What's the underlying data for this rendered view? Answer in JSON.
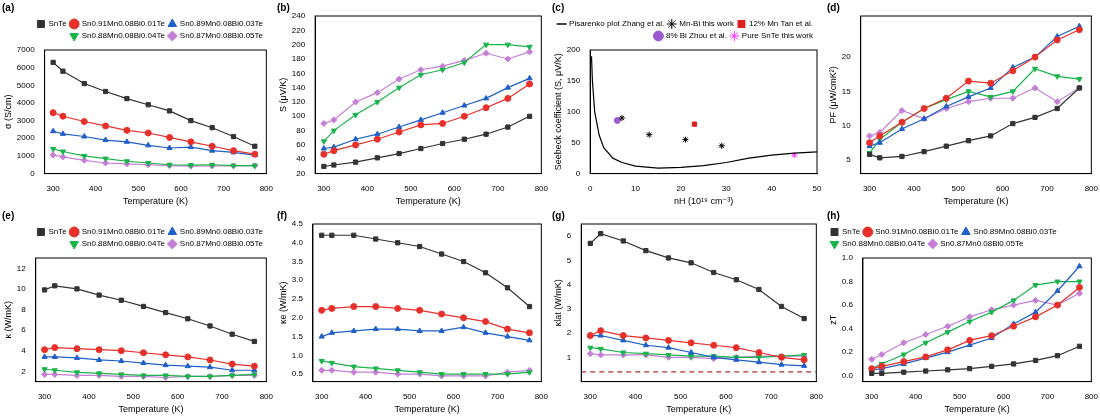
{
  "chart_data": [
    {
      "type": "line",
      "title": "(a)",
      "x_label": "Temperature (K)",
      "y_label": "σ (S/cm)",
      "x": [
        300,
        323,
        373,
        423,
        473,
        523,
        573,
        623,
        673,
        723,
        773
      ],
      "xlim": [
        280,
        800
      ],
      "xticks": [
        300,
        400,
        500,
        600,
        700,
        800
      ],
      "ylim": [
        0,
        7000
      ],
      "yticks": [
        0,
        1000,
        2000,
        3000,
        4000,
        5000,
        6000,
        7000
      ],
      "grid": false,
      "legend": "upper right",
      "series": [
        {
          "name": "SnTe",
          "color": "#333333",
          "marker": "square",
          "values": [
            6300,
            5800,
            5100,
            4650,
            4250,
            3900,
            3550,
            3000,
            2600,
            2100,
            1550
          ]
        },
        {
          "name": "Sn0.91Mn0.08Bi0.01Te",
          "color": "#e8302a",
          "marker": "circle",
          "values": [
            3450,
            3250,
            2950,
            2700,
            2450,
            2300,
            2050,
            1800,
            1550,
            1300,
            1100
          ]
        },
        {
          "name": "Sn0.89Mn0.08Bi0.03Te",
          "color": "#1f5fc8",
          "marker": "triangle",
          "values": [
            2400,
            2250,
            2100,
            1900,
            1800,
            1600,
            1450,
            1500,
            1300,
            1200,
            1050
          ]
        },
        {
          "name": "Sn0.88Mn0.08Bi0.04Te",
          "color": "#19b34b",
          "marker": "triangle-down",
          "values": [
            1400,
            1250,
            1000,
            850,
            700,
            600,
            500,
            480,
            500,
            450,
            450
          ]
        },
        {
          "name": "Sn0.87Mn0.08Bi0.05Te",
          "color": "#c57fd6",
          "marker": "diamond",
          "values": [
            1050,
            950,
            750,
            600,
            550,
            500,
            450,
            420,
            430,
            440,
            450
          ]
        }
      ]
    },
    {
      "type": "line",
      "title": "(b)",
      "x_label": "Temperature (K)",
      "y_label": "S (μV/K)",
      "x": [
        300,
        323,
        373,
        423,
        473,
        523,
        573,
        623,
        673,
        723,
        773
      ],
      "xlim": [
        280,
        800
      ],
      "xticks": [
        300,
        400,
        500,
        600,
        700,
        800
      ],
      "ylim": [
        20,
        240
      ],
      "yticks": [
        20,
        40,
        60,
        80,
        100,
        120,
        140,
        160,
        180,
        200,
        220,
        240
      ],
      "grid": false,
      "series": [
        {
          "color": "#333333",
          "marker": "square",
          "values": [
            30,
            32,
            36,
            42,
            48,
            55,
            62,
            68,
            75,
            85,
            100
          ]
        },
        {
          "color": "#e8302a",
          "marker": "circle",
          "values": [
            47,
            52,
            60,
            68,
            78,
            88,
            90,
            100,
            112,
            125,
            145
          ]
        },
        {
          "color": "#1f5fc8",
          "marker": "triangle",
          "values": [
            55,
            57,
            68,
            75,
            85,
            95,
            105,
            115,
            125,
            140,
            153
          ]
        },
        {
          "color": "#19b34b",
          "marker": "triangle-down",
          "values": [
            65,
            80,
            102,
            120,
            140,
            158,
            165,
            175,
            200,
            200,
            197
          ]
        },
        {
          "color": "#c57fd6",
          "marker": "diamond",
          "values": [
            90,
            95,
            120,
            133,
            152,
            165,
            170,
            178,
            188,
            180,
            190
          ]
        }
      ]
    },
    {
      "type": "scatter",
      "title": "(c)",
      "x_label": "nH (10¹⁹ cm⁻³)",
      "y_label": "Seebeck coefficient (S, μV/K)",
      "xlim": [
        0,
        50
      ],
      "xticks": [
        0,
        10,
        20,
        30,
        40,
        50
      ],
      "ylim": [
        0,
        200
      ],
      "yticks": [
        0,
        50,
        100,
        150,
        200
      ],
      "grid": false,
      "legend": "upper right",
      "series": [
        {
          "name": "Pisarenko plot Zhang et al.",
          "type": "line",
          "color": "#000000",
          "x": [
            0.3,
            0.5,
            1,
            2,
            3,
            5,
            7,
            10,
            15,
            20,
            25,
            30,
            35,
            40,
            45,
            50
          ],
          "values": [
            190,
            150,
            100,
            62,
            42,
            25,
            18,
            12,
            9,
            10,
            13,
            18,
            25,
            30,
            33,
            35
          ]
        },
        {
          "name": "Mn-Bi this work",
          "color": "#000000",
          "marker": "star",
          "x": [
            7,
            13,
            21,
            29
          ],
          "values": [
            90,
            63,
            55,
            45
          ]
        },
        {
          "name": "12% Mn Tan et al.",
          "color": "#e02020",
          "marker": "square",
          "x": [
            23
          ],
          "values": [
            80
          ]
        },
        {
          "name": "8% Bi Zhou et al.",
          "color": "#9b59d0",
          "marker": "circle",
          "x": [
            6
          ],
          "values": [
            86
          ]
        },
        {
          "name": "Pure SnTe this work",
          "color": "#ff33ff",
          "marker": "star",
          "x": [
            45
          ],
          "values": [
            30
          ]
        }
      ]
    },
    {
      "type": "line",
      "title": "(d)",
      "x_label": "Temperature (K)",
      "y_label": "PF (μW/cmK²)",
      "x": [
        300,
        323,
        373,
        423,
        473,
        523,
        573,
        623,
        673,
        723,
        773
      ],
      "xlim": [
        280,
        800
      ],
      "xticks": [
        300,
        400,
        500,
        600,
        700,
        800
      ],
      "ylim": [
        3,
        26
      ],
      "yticks": [
        5,
        10,
        15,
        20
      ],
      "grid": false,
      "series": [
        {
          "color": "#333333",
          "marker": "square",
          "values": [
            5.8,
            5.3,
            5.5,
            6.2,
            7.0,
            7.8,
            8.5,
            10.3,
            11.2,
            12.5,
            15.5
          ]
        },
        {
          "color": "#e8302a",
          "marker": "circle",
          "values": [
            7.5,
            8.5,
            10.5,
            12.5,
            14.0,
            16.5,
            16.2,
            18.0,
            20.0,
            22.5,
            24.0
          ]
        },
        {
          "color": "#1f5fc8",
          "marker": "triangle",
          "values": [
            7.0,
            7.5,
            9.5,
            11.0,
            12.8,
            14.2,
            15.5,
            18.5,
            20.0,
            23.0,
            24.5
          ]
        },
        {
          "color": "#19b34b",
          "marker": "triangle-down",
          "values": [
            6.0,
            8.0,
            10.5,
            12.5,
            13.8,
            15.0,
            14.2,
            15.0,
            18.3,
            17.2,
            16.8
          ]
        },
        {
          "color": "#c57fd6",
          "marker": "diamond",
          "values": [
            8.5,
            9.0,
            12.2,
            11.0,
            12.5,
            13.5,
            14.0,
            14.0,
            15.5,
            13.5,
            15.5
          ]
        }
      ]
    },
    {
      "type": "line",
      "title": "(e)",
      "x_label": "Temperature (K)",
      "y_label": "κ (W/mK)",
      "x": [
        300,
        323,
        373,
        423,
        473,
        523,
        573,
        623,
        673,
        723,
        773
      ],
      "xlim": [
        280,
        800
      ],
      "xticks": [
        300,
        400,
        500,
        600,
        700,
        800
      ],
      "ylim": [
        1,
        13
      ],
      "yticks": [
        2,
        4,
        6,
        8,
        10,
        12
      ],
      "grid": false,
      "legend": "upper right",
      "series": [
        {
          "name": "SnTe",
          "color": "#333333",
          "marker": "square",
          "values": [
            9.9,
            10.3,
            10.0,
            9.4,
            8.9,
            8.3,
            7.7,
            7.1,
            6.4,
            5.6,
            4.9
          ]
        },
        {
          "name": "Sn0.91Mn0.08Bi0.01Te",
          "color": "#e8302a",
          "marker": "circle",
          "values": [
            4.1,
            4.3,
            4.2,
            4.1,
            4.0,
            3.8,
            3.6,
            3.4,
            3.1,
            2.7,
            2.5
          ]
        },
        {
          "name": "Sn0.89Mn0.08Bi0.03Te",
          "color": "#1f5fc8",
          "marker": "triangle",
          "values": [
            3.4,
            3.4,
            3.3,
            3.1,
            3.0,
            2.8,
            2.6,
            2.5,
            2.4,
            2.1,
            2.1
          ]
        },
        {
          "name": "Sn0.88Mn0.08Bi0.04Te",
          "color": "#19b34b",
          "marker": "triangle-down",
          "values": [
            2.2,
            2.1,
            1.9,
            1.8,
            1.7,
            1.6,
            1.6,
            1.5,
            1.5,
            1.6,
            1.7
          ]
        },
        {
          "name": "Sn0.87Mn0.08Bi0.05Te",
          "color": "#c57fd6",
          "marker": "diamond",
          "values": [
            1.7,
            1.7,
            1.6,
            1.6,
            1.5,
            1.5,
            1.4,
            1.5,
            1.5,
            1.6,
            1.6
          ]
        }
      ]
    },
    {
      "type": "line",
      "title": "(f)",
      "x_label": "Temperature (K)",
      "y_label": "κe (W/mK)",
      "x": [
        300,
        323,
        373,
        423,
        473,
        523,
        573,
        623,
        673,
        723,
        773
      ],
      "xlim": [
        280,
        800
      ],
      "xticks": [
        300,
        400,
        500,
        600,
        700,
        800
      ],
      "ylim": [
        0.3,
        4.5
      ],
      "yticks": [
        0.5,
        {
          "value": 1,
          "label": "1.0"
        },
        1.5,
        {
          "value": 2,
          "label": "2.0"
        },
        2.5,
        {
          "value": 3,
          "label": "3.0"
        },
        3.5,
        {
          "value": 4,
          "label": "4.0"
        },
        4.5
      ],
      "grid": false,
      "series": [
        {
          "color": "#333333",
          "marker": "square",
          "values": [
            4.2,
            4.2,
            4.2,
            4.1,
            4.0,
            3.9,
            3.7,
            3.5,
            3.2,
            2.8,
            2.3
          ]
        },
        {
          "color": "#e8302a",
          "marker": "circle",
          "values": [
            2.2,
            2.25,
            2.3,
            2.3,
            2.25,
            2.2,
            2.1,
            2.0,
            1.9,
            1.7,
            1.6
          ]
        },
        {
          "color": "#1f5fc8",
          "marker": "triangle",
          "values": [
            1.5,
            1.6,
            1.65,
            1.7,
            1.7,
            1.65,
            1.65,
            1.75,
            1.6,
            1.5,
            1.4
          ]
        },
        {
          "color": "#19b34b",
          "marker": "triangle-down",
          "values": [
            0.85,
            0.8,
            0.7,
            0.65,
            0.6,
            0.55,
            0.5,
            0.5,
            0.5,
            0.5,
            0.55
          ]
        },
        {
          "color": "#c57fd6",
          "marker": "diamond",
          "values": [
            0.6,
            0.6,
            0.55,
            0.55,
            0.5,
            0.5,
            0.45,
            0.45,
            0.45,
            0.55,
            0.6
          ]
        }
      ]
    },
    {
      "type": "line",
      "title": "(g)",
      "x_label": "Temperature (K)",
      "y_label": "κlat (W/mK)",
      "x": [
        300,
        323,
        373,
        423,
        473,
        523,
        573,
        623,
        673,
        723,
        773
      ],
      "xlim": [
        280,
        800
      ],
      "xticks": [
        300,
        400,
        500,
        600,
        700,
        800
      ],
      "ylim": [
        0,
        6.5
      ],
      "yticks": [
        1,
        2,
        3,
        4,
        5,
        6
      ],
      "grid": false,
      "series": [
        {
          "color": "#333333",
          "marker": "square",
          "values": [
            5.7,
            6.1,
            5.8,
            5.4,
            5.1,
            4.9,
            4.5,
            4.2,
            3.8,
            3.1,
            2.6
          ]
        },
        {
          "color": "#e8302a",
          "marker": "circle",
          "values": [
            1.9,
            2.1,
            1.9,
            1.8,
            1.7,
            1.6,
            1.5,
            1.4,
            1.2,
            1.0,
            0.9
          ]
        },
        {
          "color": "#1f5fc8",
          "marker": "triangle",
          "values": [
            1.9,
            1.9,
            1.7,
            1.5,
            1.4,
            1.2,
            1.0,
            0.9,
            0.8,
            0.7,
            0.65
          ]
        },
        {
          "color": "#19b34b",
          "marker": "triangle-down",
          "values": [
            1.4,
            1.35,
            1.2,
            1.15,
            1.1,
            1.05,
            1.05,
            1.0,
            1.0,
            1.05,
            1.1
          ]
        },
        {
          "color": "#c57fd6",
          "marker": "diamond",
          "values": [
            1.15,
            1.1,
            1.1,
            1.1,
            1.0,
            1.0,
            0.95,
            1.0,
            1.05,
            1.05,
            1.05
          ]
        },
        {
          "color": "#b03030",
          "line_style": "dashed",
          "x": [
            280,
            800
          ],
          "values": [
            0.4,
            0.4
          ]
        }
      ]
    },
    {
      "type": "line",
      "title": "(h)",
      "x_label": "Temperature (K)",
      "y_label": "zT",
      "x": [
        300,
        323,
        373,
        423,
        473,
        523,
        573,
        623,
        673,
        723,
        773
      ],
      "xlim": [
        280,
        800
      ],
      "xticks": [
        300,
        400,
        500,
        600,
        700,
        800
      ],
      "ylim": [
        -0.05,
        1.0
      ],
      "yticks": [
        {
          "value": 0,
          "label": "0.0"
        },
        0.2,
        0.4,
        0.6,
        0.8,
        {
          "value": 1,
          "label": "1.0"
        }
      ],
      "grid": false,
      "legend": "upper left",
      "series": [
        {
          "name": "SnTe",
          "color": "#333333",
          "marker": "square",
          "values": [
            0.02,
            0.02,
            0.03,
            0.04,
            0.05,
            0.06,
            0.08,
            0.1,
            0.13,
            0.17,
            0.25
          ]
        },
        {
          "name": "Sn0.91Mn0.08Bi0.01Te",
          "color": "#e8302a",
          "marker": "circle",
          "values": [
            0.06,
            0.08,
            0.12,
            0.16,
            0.22,
            0.3,
            0.34,
            0.42,
            0.5,
            0.6,
            0.75
          ]
        },
        {
          "name": "Sn0.89Mn0.08Bi0.03Te",
          "color": "#1f5fc8",
          "marker": "triangle",
          "values": [
            0.05,
            0.06,
            0.1,
            0.15,
            0.2,
            0.26,
            0.32,
            0.44,
            0.54,
            0.72,
            0.93
          ]
        },
        {
          "name": "Sn0.88Mn0.08Bi0.04Te",
          "color": "#19b34b",
          "marker": "triangle-down",
          "values": [
            0.06,
            0.1,
            0.18,
            0.28,
            0.37,
            0.46,
            0.54,
            0.64,
            0.77,
            0.8,
            0.8
          ]
        },
        {
          "name": "Sn0.87Mn0.08Bi0.05Te",
          "color": "#c57fd6",
          "marker": "diamond",
          "values": [
            0.14,
            0.18,
            0.28,
            0.35,
            0.42,
            0.5,
            0.56,
            0.6,
            0.64,
            0.6,
            0.7
          ]
        }
      ]
    }
  ]
}
